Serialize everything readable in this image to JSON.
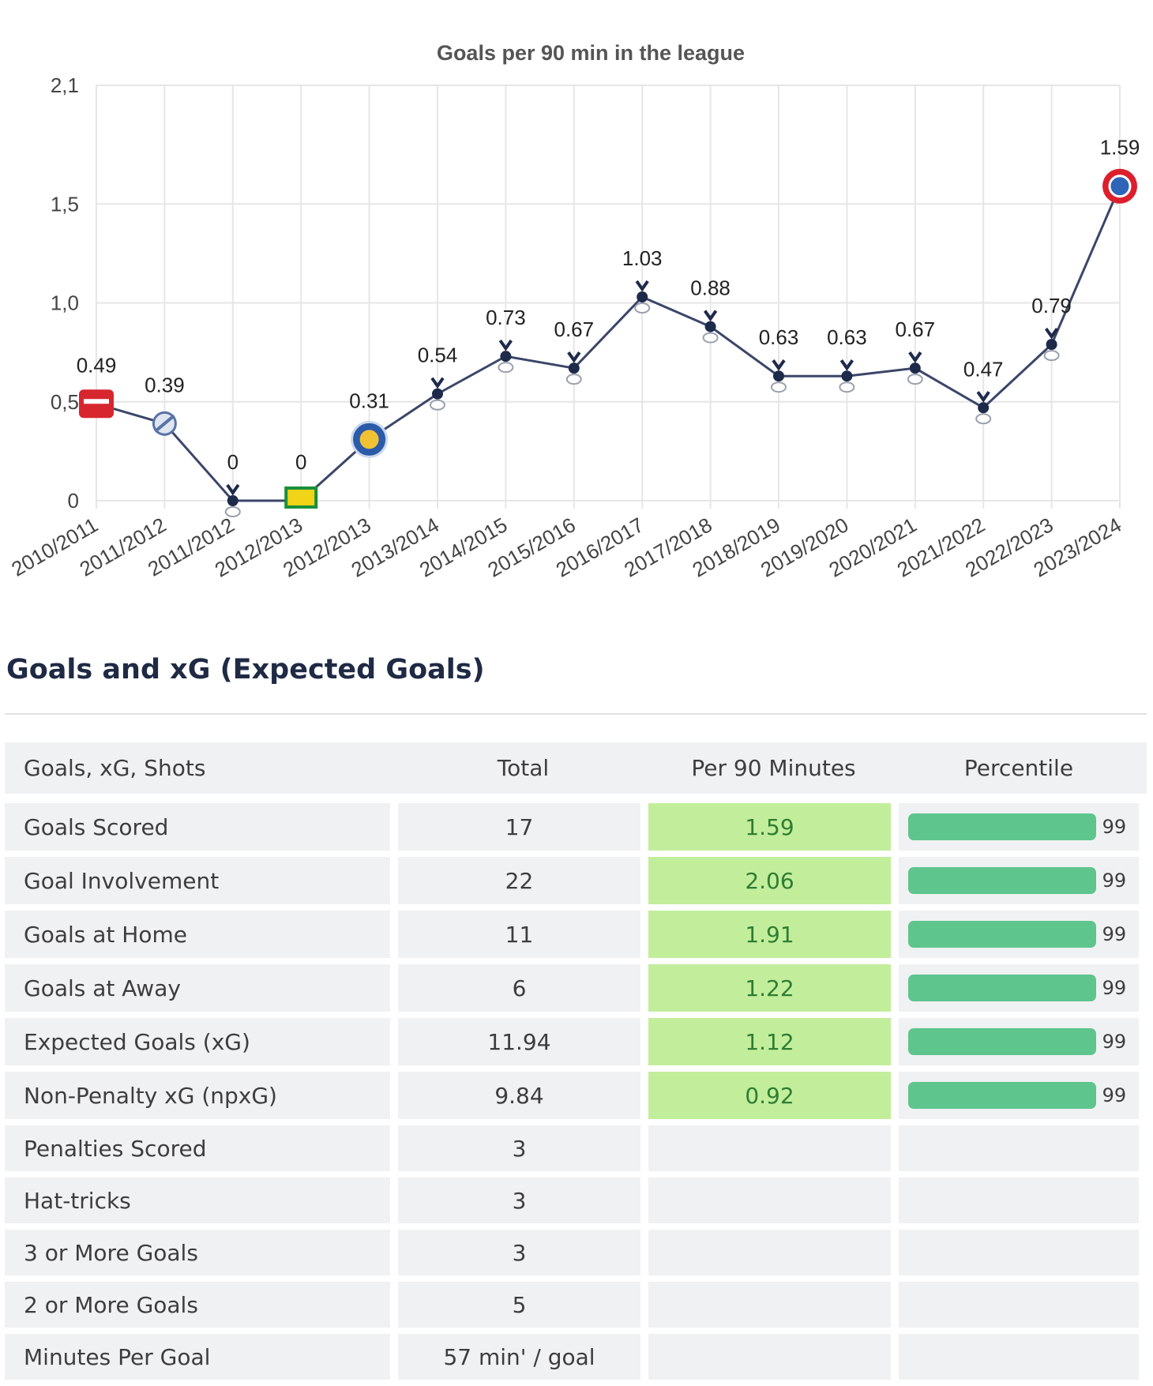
{
  "chart_data": {
    "type": "line",
    "title": "Goals per 90 min in the league",
    "xlabel": "",
    "ylabel": "",
    "ylim": [
      0,
      2.1
    ],
    "yticks": [
      {
        "value": 0,
        "label": "0"
      },
      {
        "value": 0.5,
        "label": "0,5"
      },
      {
        "value": 1.0,
        "label": "1,0"
      },
      {
        "value": 1.5,
        "label": "1,5"
      },
      {
        "value": 2.1,
        "label": "2,1"
      }
    ],
    "categories": [
      "2010/2011",
      "2011/2012",
      "2011/2012",
      "2012/2013",
      "2012/2013",
      "2013/2014",
      "2014/2015",
      "2015/2016",
      "2016/2017",
      "2017/2018",
      "2018/2019",
      "2019/2020",
      "2020/2021",
      "2021/2022",
      "2022/2023",
      "2023/2024"
    ],
    "values": [
      0.49,
      0.39,
      0,
      0,
      0.31,
      0.54,
      0.73,
      0.67,
      1.03,
      0.88,
      0.63,
      0.63,
      0.67,
      0.47,
      0.79,
      1.59
    ],
    "value_labels": [
      "0.49",
      "0.39",
      "0",
      "0",
      "0.31",
      "0.54",
      "0.73",
      "0.67",
      "1.03",
      "0.88",
      "0.63",
      "0.63",
      "0.67",
      "0.47",
      "0.79",
      "1.59"
    ],
    "markers": [
      "club-badge-red",
      "club-badge-lion",
      "club-badge-cockerel",
      "club-badge-canary",
      "club-badge-fox",
      "club-badge-cockerel",
      "club-badge-cockerel",
      "club-badge-cockerel",
      "club-badge-cockerel",
      "club-badge-cockerel",
      "club-badge-cockerel",
      "club-badge-cockerel",
      "club-badge-cockerel",
      "club-badge-cockerel",
      "club-badge-cockerel",
      "club-badge-bayern"
    ],
    "colors": {
      "line": "#3b4668",
      "grid": "#e6e6e6",
      "text": "#444444"
    }
  },
  "section": {
    "title": "Goals and xG (Expected Goals)"
  },
  "table": {
    "headers": [
      "Goals, xG, Shots",
      "Total",
      "Per 90 Minutes",
      "Percentile"
    ],
    "rows": [
      {
        "label": "Goals Scored",
        "total": "17",
        "per90": "1.59",
        "percentile": "99",
        "percentile_value": 99
      },
      {
        "label": "Goal Involvement",
        "total": "22",
        "per90": "2.06",
        "percentile": "99",
        "percentile_value": 99
      },
      {
        "label": "Goals at Home",
        "total": "11",
        "per90": "1.91",
        "percentile": "99",
        "percentile_value": 99
      },
      {
        "label": "Goals at Away",
        "total": "6",
        "per90": "1.22",
        "percentile": "99",
        "percentile_value": 99
      },
      {
        "label": "Expected Goals (xG)",
        "total": "11.94",
        "per90": "1.12",
        "percentile": "99",
        "percentile_value": 99
      },
      {
        "label": "Non-Penalty xG (npxG)",
        "total": "9.84",
        "per90": "0.92",
        "percentile": "99",
        "percentile_value": 99
      },
      {
        "label": "Penalties Scored",
        "total": "3",
        "per90": "",
        "percentile": ""
      },
      {
        "label": "Hat-tricks",
        "total": "3",
        "per90": "",
        "percentile": ""
      },
      {
        "label": "3 or More Goals",
        "total": "3",
        "per90": "",
        "percentile": ""
      },
      {
        "label": "2 or More Goals",
        "total": "5",
        "per90": "",
        "percentile": ""
      },
      {
        "label": "Minutes Per Goal",
        "total": "57 min' / goal",
        "per90": "",
        "percentile": ""
      }
    ],
    "colors": {
      "per90_bg": "#c2ee9b",
      "per90_text": "#2e7d32",
      "bar": "#5ec58d",
      "row_bg": "#f0f1f3"
    }
  }
}
